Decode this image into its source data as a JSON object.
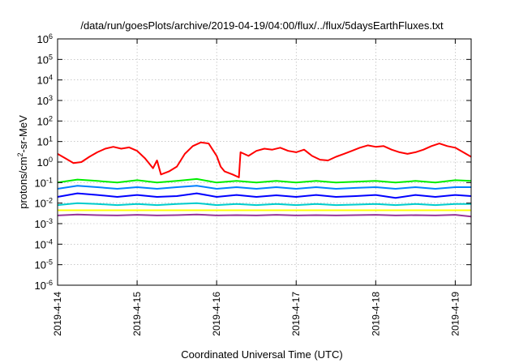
{
  "chart_data": {
    "type": "line",
    "title": "/data/run/goesPlots/archive/2019-04-19/04:00/flux/../flux/5daysEarthFluxes.txt",
    "xlabel": "Coordinated Universal Time (UTC)",
    "ylabel": {
      "base": "protons/cm",
      "sup": "2",
      "rest": "-sr-MeV"
    },
    "yscale": "log",
    "ylim": [
      1e-06,
      1000000.0
    ],
    "xlim": [
      0,
      5.2
    ],
    "grid": true,
    "x_ticks": [
      {
        "x": 0,
        "label": "2019-4-14"
      },
      {
        "x": 1,
        "label": "2019-4-15"
      },
      {
        "x": 2,
        "label": "2019-4-16"
      },
      {
        "x": 3,
        "label": "2019-4-17"
      },
      {
        "x": 4,
        "label": "2019-4-18"
      },
      {
        "x": 5,
        "label": "2019-4-19"
      }
    ],
    "y_ticks": [
      {
        "exp": 6,
        "label": "10",
        "sup": "6"
      },
      {
        "exp": 5,
        "label": "10",
        "sup": "5"
      },
      {
        "exp": 4,
        "label": "10",
        "sup": "4"
      },
      {
        "exp": 3,
        "label": "10",
        "sup": "3"
      },
      {
        "exp": 2,
        "label": "10",
        "sup": "2"
      },
      {
        "exp": 1,
        "label": "10",
        "sup": "1"
      },
      {
        "exp": 0,
        "label": "10",
        "sup": "0"
      },
      {
        "exp": -1,
        "label": "10",
        "sup": "-1"
      },
      {
        "exp": -2,
        "label": "10",
        "sup": "-2"
      },
      {
        "exp": -3,
        "label": "10",
        "sup": "-3"
      },
      {
        "exp": -4,
        "label": "10",
        "sup": "-4"
      },
      {
        "exp": -5,
        "label": "10",
        "sup": "-5"
      },
      {
        "exp": -6,
        "label": "10",
        "sup": "-6"
      }
    ],
    "series": [
      {
        "color": "#ff0000",
        "x": [
          0,
          0.1,
          0.2,
          0.3,
          0.4,
          0.5,
          0.6,
          0.7,
          0.8,
          0.9,
          1.0,
          1.1,
          1.2,
          1.25,
          1.3,
          1.4,
          1.5,
          1.6,
          1.7,
          1.8,
          1.9,
          2.0,
          2.05,
          2.1,
          2.2,
          2.28,
          2.3,
          2.4,
          2.5,
          2.6,
          2.7,
          2.8,
          2.9,
          3.0,
          3.1,
          3.2,
          3.3,
          3.4,
          3.5,
          3.6,
          3.7,
          3.8,
          3.9,
          4.0,
          4.1,
          4.2,
          4.3,
          4.4,
          4.5,
          4.6,
          4.7,
          4.8,
          4.9,
          5.0,
          5.1,
          5.2
        ],
        "y": [
          2.5,
          1.5,
          0.9,
          1.0,
          1.8,
          3.0,
          4.5,
          5.5,
          4.5,
          5.2,
          3.5,
          1.5,
          0.5,
          1.2,
          0.25,
          0.35,
          0.6,
          2.5,
          6.0,
          9.0,
          8.0,
          2.0,
          0.6,
          0.35,
          0.25,
          0.18,
          3.0,
          2.0,
          3.5,
          4.5,
          4.0,
          5.0,
          3.5,
          3.0,
          4.0,
          2.0,
          1.3,
          1.2,
          1.8,
          2.5,
          3.5,
          5.0,
          6.5,
          5.5,
          6.0,
          4.0,
          3.0,
          2.5,
          3.0,
          4.0,
          6.0,
          8.0,
          6.0,
          5.0,
          3.0,
          1.8
        ]
      },
      {
        "color": "#00ee00",
        "x": [
          0,
          0.25,
          0.5,
          0.75,
          1.0,
          1.25,
          1.5,
          1.75,
          2.0,
          2.25,
          2.5,
          2.75,
          3.0,
          3.25,
          3.5,
          3.75,
          4.0,
          4.25,
          4.5,
          4.75,
          5.0,
          5.2
        ],
        "y": [
          0.1,
          0.14,
          0.12,
          0.1,
          0.13,
          0.1,
          0.12,
          0.15,
          0.1,
          0.12,
          0.1,
          0.12,
          0.1,
          0.12,
          0.1,
          0.11,
          0.12,
          0.1,
          0.12,
          0.1,
          0.13,
          0.12
        ]
      },
      {
        "color": "#0080ff",
        "x": [
          0,
          0.25,
          0.5,
          0.75,
          1.0,
          1.25,
          1.5,
          1.75,
          2.0,
          2.25,
          2.5,
          2.75,
          3.0,
          3.25,
          3.5,
          3.75,
          4.0,
          4.25,
          4.5,
          4.75,
          5.0,
          5.2
        ],
        "y": [
          0.05,
          0.07,
          0.06,
          0.05,
          0.06,
          0.05,
          0.06,
          0.07,
          0.05,
          0.06,
          0.05,
          0.06,
          0.05,
          0.06,
          0.05,
          0.055,
          0.06,
          0.05,
          0.06,
          0.05,
          0.06,
          0.06
        ]
      },
      {
        "color": "#0000ff",
        "x": [
          0,
          0.25,
          0.5,
          0.75,
          1.0,
          1.25,
          1.5,
          1.75,
          2.0,
          2.25,
          2.5,
          2.75,
          3.0,
          3.25,
          3.5,
          3.75,
          4.0,
          4.25,
          4.5,
          4.75,
          5.0,
          5.2
        ],
        "y": [
          0.02,
          0.03,
          0.025,
          0.02,
          0.025,
          0.02,
          0.022,
          0.03,
          0.02,
          0.025,
          0.02,
          0.024,
          0.02,
          0.025,
          0.02,
          0.022,
          0.025,
          0.018,
          0.025,
          0.02,
          0.025,
          0.022
        ]
      },
      {
        "color": "#00cccc",
        "x": [
          0,
          0.25,
          0.5,
          0.75,
          1.0,
          1.25,
          1.5,
          1.75,
          2.0,
          2.25,
          2.5,
          2.75,
          3.0,
          3.25,
          3.5,
          3.75,
          4.0,
          4.25,
          4.5,
          4.75,
          5.0,
          5.2
        ],
        "y": [
          0.008,
          0.01,
          0.009,
          0.008,
          0.009,
          0.008,
          0.009,
          0.01,
          0.008,
          0.009,
          0.008,
          0.009,
          0.008,
          0.009,
          0.008,
          0.0085,
          0.009,
          0.008,
          0.009,
          0.008,
          0.009,
          0.009
        ]
      },
      {
        "color": "#ffff00",
        "x": [
          0,
          0.5,
          1.0,
          1.5,
          2.0,
          2.5,
          3.0,
          3.5,
          4.0,
          4.5,
          5.0,
          5.2
        ],
        "y": [
          0.0045,
          0.0045,
          0.0045,
          0.0045,
          0.0045,
          0.0045,
          0.0045,
          0.0045,
          0.0045,
          0.0045,
          0.0045,
          0.0045
        ]
      },
      {
        "color": "#993399",
        "x": [
          0,
          0.25,
          0.5,
          0.75,
          1.0,
          1.25,
          1.5,
          1.75,
          2.0,
          2.25,
          2.5,
          2.75,
          3.0,
          3.25,
          3.5,
          3.75,
          4.0,
          4.25,
          4.5,
          4.75,
          5.0,
          5.2
        ],
        "y": [
          0.0025,
          0.0028,
          0.0026,
          0.0025,
          0.0027,
          0.0025,
          0.0026,
          0.0028,
          0.0025,
          0.0026,
          0.0025,
          0.0027,
          0.0025,
          0.0026,
          0.0025,
          0.0026,
          0.0027,
          0.0025,
          0.0026,
          0.0025,
          0.0027,
          0.0022
        ]
      }
    ]
  }
}
